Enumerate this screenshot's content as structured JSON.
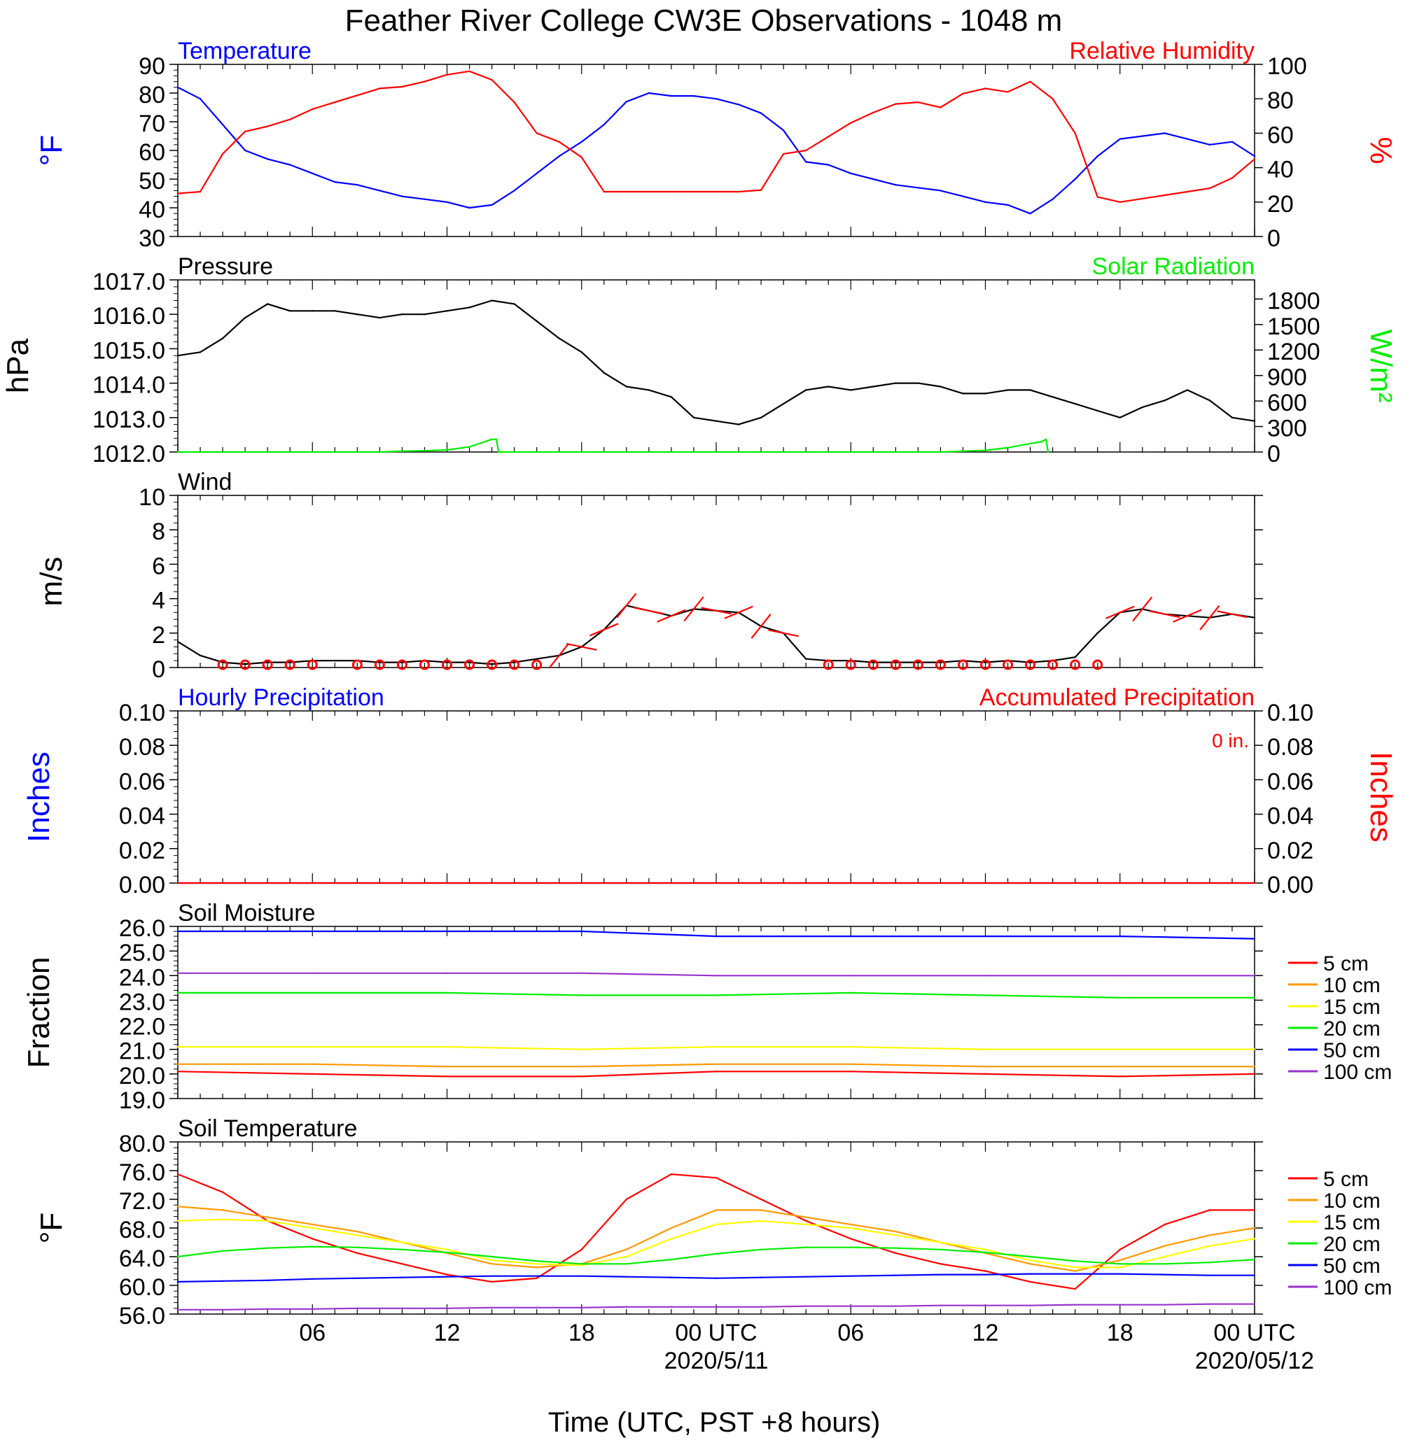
{
  "title": "Feather River College CW3E Observations - 1048 m",
  "colors": {
    "blue": "#0000ff",
    "red": "#ff0000",
    "green": "#00ee00",
    "black": "#000000",
    "orange": "#ff9900",
    "yellow": "#ffff00",
    "purple": "#9933cc"
  },
  "x_axis": {
    "label": "Time (UTC, PST +8 hours)",
    "tick_labels": [
      {
        "hour": 6,
        "text": "06"
      },
      {
        "hour": 12,
        "text": "12"
      },
      {
        "hour": 18,
        "text": "18"
      },
      {
        "hour": 24,
        "text": "00 UTC",
        "date": "2020/5/11"
      },
      {
        "hour": 30,
        "text": "06"
      },
      {
        "hour": 36,
        "text": "12"
      },
      {
        "hour": 42,
        "text": "18"
      },
      {
        "hour": 48,
        "text": "00 UTC",
        "date": "2020/05/12"
      }
    ]
  },
  "chart_data": [
    {
      "id": "temp_rh",
      "type": "line",
      "left_title": "Temperature",
      "right_title": "Relative Humidity",
      "ylabel": "°F",
      "ylabel2": "%",
      "ylim": [
        30,
        90
      ],
      "ylim2": [
        0,
        100
      ],
      "yticks": [
        "30",
        "40",
        "50",
        "60",
        "70",
        "80",
        "90"
      ],
      "yticks2": [
        "0",
        "20",
        "40",
        "60",
        "80",
        "100"
      ],
      "series": [
        {
          "axis": "left",
          "color": "blue",
          "x": [
            0,
            1,
            2,
            3,
            4,
            5,
            6,
            7,
            8,
            9,
            10,
            11,
            12,
            13,
            14,
            15,
            16,
            17,
            18,
            19,
            20,
            21,
            22,
            23,
            24,
            25,
            26,
            27,
            28,
            29,
            30,
            31,
            32,
            33,
            34,
            35,
            36,
            37,
            38,
            39,
            40,
            41,
            42,
            43,
            44,
            45,
            46,
            47,
            48
          ],
          "y": [
            82,
            78,
            69,
            60,
            57,
            55,
            52,
            49,
            48,
            46,
            44,
            43,
            42,
            40,
            41,
            46,
            52,
            58,
            63,
            69,
            77,
            80,
            79,
            79,
            78,
            76,
            73,
            67,
            56,
            55,
            52,
            50,
            48,
            47,
            46,
            44,
            42,
            41,
            38,
            43,
            50,
            58,
            64,
            65,
            66,
            64,
            62,
            63,
            58
          ]
        },
        {
          "axis": "right",
          "color": "red",
          "x": [
            0,
            1,
            2,
            3,
            4,
            5,
            6,
            7,
            8,
            9,
            10,
            11,
            12,
            13,
            14,
            15,
            16,
            17,
            18,
            19,
            20,
            21,
            22,
            23,
            24,
            25,
            26,
            27,
            28,
            29,
            30,
            31,
            32,
            33,
            34,
            35,
            36,
            37,
            38,
            39,
            40,
            41,
            42,
            43,
            44,
            45,
            46,
            47,
            48
          ],
          "y": [
            25,
            26,
            48,
            61,
            64,
            68,
            74,
            78,
            82,
            86,
            87,
            90,
            94,
            96,
            91,
            78,
            60,
            55,
            46,
            26,
            26,
            26,
            26,
            26,
            26,
            26,
            27,
            48,
            50,
            58,
            66,
            72,
            77,
            78,
            75,
            83,
            86,
            84,
            90,
            80,
            60,
            23,
            20,
            22,
            24,
            26,
            28,
            34,
            45
          ]
        }
      ]
    },
    {
      "id": "pressure_solar",
      "type": "line",
      "left_title": "Pressure",
      "right_title": "Solar Radiation",
      "ylabel": "hPa",
      "ylabel2": "W/m²",
      "ylim": [
        1012,
        1017
      ],
      "ylim2": [
        0,
        2025
      ],
      "yticks": [
        "1012.0",
        "1013.0",
        "1014.0",
        "1015.0",
        "1016.0",
        "1017.0"
      ],
      "yticks2": [
        "0",
        "300",
        "600",
        "900",
        "1200",
        "1500",
        "1800"
      ],
      "series": [
        {
          "axis": "left",
          "color": "black",
          "x": [
            0,
            1,
            2,
            3,
            4,
            5,
            6,
            7,
            8,
            9,
            10,
            11,
            12,
            13,
            14,
            15,
            16,
            17,
            18,
            19,
            20,
            21,
            22,
            23,
            24,
            25,
            26,
            27,
            28,
            29,
            30,
            31,
            32,
            33,
            34,
            35,
            36,
            37,
            38,
            39,
            40,
            41,
            42,
            43,
            44,
            45,
            46,
            47,
            48
          ],
          "y": [
            1014.8,
            1014.9,
            1015.3,
            1015.9,
            1016.3,
            1016.1,
            1016.1,
            1016.1,
            1016.0,
            1015.9,
            1016.0,
            1016.0,
            1016.1,
            1016.2,
            1016.4,
            1016.3,
            1015.8,
            1015.3,
            1014.9,
            1014.3,
            1013.9,
            1013.8,
            1013.6,
            1013.0,
            1012.9,
            1012.8,
            1013.0,
            1013.4,
            1013.8,
            1013.9,
            1013.8,
            1013.9,
            1014.0,
            1014.0,
            1013.9,
            1013.7,
            1013.7,
            1013.8,
            1013.8,
            1013.6,
            1013.4,
            1013.2,
            1013.0,
            1013.3,
            1013.5,
            1013.8,
            1013.5,
            1013.0,
            1012.9
          ]
        },
        {
          "axis": "right",
          "color": "green",
          "x": [
            0,
            9,
            10,
            11,
            12,
            13,
            14,
            14.2,
            14.3,
            34,
            35,
            36,
            37,
            38,
            38.5,
            38.7,
            38.8
          ],
          "y": [
            0,
            0,
            10,
            15,
            25,
            60,
            150,
            150,
            0,
            0,
            10,
            20,
            50,
            100,
            120,
            150,
            0
          ]
        }
      ]
    },
    {
      "id": "wind",
      "type": "line",
      "left_title": "Wind",
      "ylabel": "m/s",
      "ylim": [
        0,
        10
      ],
      "yticks": [
        "0",
        "2",
        "4",
        "6",
        "8",
        "10"
      ],
      "series": [
        {
          "axis": "left",
          "color": "black",
          "x": [
            0,
            1,
            2,
            3,
            4,
            5,
            6,
            7,
            8,
            9,
            10,
            11,
            12,
            13,
            14,
            15,
            16,
            17,
            18,
            19,
            20,
            21,
            22,
            23,
            24,
            25,
            26,
            27,
            28,
            29,
            30,
            31,
            32,
            33,
            34,
            35,
            36,
            37,
            38,
            39,
            40,
            41,
            42,
            43,
            44,
            45,
            46,
            47,
            48
          ],
          "y": [
            1.5,
            0.7,
            0.3,
            0.2,
            0.3,
            0.3,
            0.4,
            0.4,
            0.4,
            0.3,
            0.3,
            0.4,
            0.3,
            0.3,
            0.2,
            0.3,
            0.5,
            0.7,
            1.2,
            2.2,
            3.6,
            3.3,
            3.0,
            3.4,
            3.3,
            3.2,
            2.4,
            2.0,
            0.5,
            0.4,
            0.4,
            0.3,
            0.3,
            0.3,
            0.3,
            0.4,
            0.3,
            0.4,
            0.3,
            0.4,
            0.6,
            2.0,
            3.2,
            3.4,
            3.1,
            3.0,
            2.9,
            3.1,
            2.9
          ]
        }
      ]
    },
    {
      "id": "precip",
      "type": "line",
      "left_title": "Hourly Precipitation",
      "right_title": "Accumulated Precipitation",
      "annotation": "0 in.",
      "ylabel": "Inches",
      "ylabel2": "Inches",
      "ylim": [
        0,
        0.1
      ],
      "ylim2": [
        0,
        0.1
      ],
      "yticks": [
        "0.00",
        "0.02",
        "0.04",
        "0.06",
        "0.08",
        "0.10"
      ],
      "yticks2": [
        "0.00",
        "0.02",
        "0.04",
        "0.06",
        "0.08",
        "0.10"
      ],
      "series": [
        {
          "axis": "left",
          "color": "blue",
          "x": [
            0,
            48
          ],
          "y": [
            0,
            0
          ]
        },
        {
          "axis": "right",
          "color": "red",
          "x": [
            0,
            48
          ],
          "y": [
            0,
            0
          ]
        }
      ]
    },
    {
      "id": "soil_moisture",
      "type": "line",
      "left_title": "Soil Moisture",
      "ylabel": "Fraction",
      "ylim": [
        19,
        26
      ],
      "yticks": [
        "19.0",
        "20.0",
        "21.0",
        "22.0",
        "23.0",
        "24.0",
        "25.0",
        "26.0"
      ],
      "x": [
        0,
        6,
        12,
        18,
        24,
        30,
        36,
        42,
        48
      ],
      "series": [
        {
          "name": "5 cm",
          "color": "red",
          "y": [
            20.1,
            20.0,
            19.9,
            19.9,
            20.1,
            20.1,
            20.0,
            19.9,
            20.0
          ]
        },
        {
          "name": "10 cm",
          "color": "orange",
          "y": [
            20.4,
            20.4,
            20.3,
            20.3,
            20.4,
            20.4,
            20.3,
            20.3,
            20.3
          ]
        },
        {
          "name": "15 cm",
          "color": "yellow",
          "y": [
            21.1,
            21.1,
            21.1,
            21.0,
            21.1,
            21.1,
            21.0,
            21.0,
            21.0
          ]
        },
        {
          "name": "20 cm",
          "color": "green",
          "y": [
            23.3,
            23.3,
            23.3,
            23.2,
            23.2,
            23.3,
            23.2,
            23.1,
            23.1
          ]
        },
        {
          "name": "50 cm",
          "color": "blue",
          "y": [
            25.8,
            25.8,
            25.8,
            25.8,
            25.6,
            25.6,
            25.6,
            25.6,
            25.5
          ]
        },
        {
          "name": "100 cm",
          "color": "purple",
          "y": [
            24.1,
            24.1,
            24.1,
            24.1,
            24.0,
            24.0,
            24.0,
            24.0,
            24.0
          ]
        }
      ]
    },
    {
      "id": "soil_temperature",
      "type": "line",
      "left_title": "Soil Temperature",
      "ylabel": "°F",
      "ylim": [
        56,
        80
      ],
      "yticks": [
        "56.0",
        "60.0",
        "64.0",
        "68.0",
        "72.0",
        "76.0",
        "80.0"
      ],
      "x": [
        0,
        2,
        4,
        6,
        8,
        10,
        12,
        14,
        16,
        18,
        20,
        22,
        24,
        26,
        28,
        30,
        32,
        34,
        36,
        38,
        40,
        42,
        44,
        46,
        48
      ],
      "series": [
        {
          "name": "5 cm",
          "color": "red",
          "y": [
            75.5,
            73,
            69,
            66.5,
            64.5,
            63,
            61.5,
            60.5,
            61,
            65,
            72,
            75.5,
            75,
            72,
            69,
            66.5,
            64.5,
            63,
            62,
            60.5,
            59.5,
            65,
            68.5,
            70.5,
            70.5
          ]
        },
        {
          "name": "10 cm",
          "color": "orange",
          "y": [
            71.0,
            70.5,
            69.5,
            68.5,
            67.5,
            66,
            64.5,
            63,
            62.5,
            63,
            65,
            68,
            70.5,
            70.5,
            69.5,
            68.5,
            67.5,
            66,
            64.5,
            63,
            62,
            63.5,
            65.5,
            67,
            68
          ]
        },
        {
          "name": "15 cm",
          "color": "yellow",
          "y": [
            69.0,
            69.2,
            69,
            68,
            67,
            66,
            65,
            63.5,
            63,
            62.8,
            64,
            66.5,
            68.5,
            69,
            68.5,
            68,
            67,
            66,
            65,
            63.5,
            62.5,
            62.5,
            64,
            65.5,
            66.5
          ]
        },
        {
          "name": "20 cm",
          "color": "green",
          "y": [
            64.0,
            64.8,
            65.2,
            65.4,
            65.3,
            65.0,
            64.6,
            64.0,
            63.4,
            63.0,
            63.0,
            63.6,
            64.4,
            65.0,
            65.3,
            65.3,
            65.2,
            65.0,
            64.6,
            64.0,
            63.4,
            63.0,
            63.0,
            63.2,
            63.6
          ]
        },
        {
          "name": "50 cm",
          "color": "blue",
          "y": [
            60.5,
            60.6,
            60.7,
            60.9,
            61.0,
            61.1,
            61.2,
            61.3,
            61.3,
            61.3,
            61.2,
            61.1,
            61.0,
            61.1,
            61.2,
            61.3,
            61.4,
            61.5,
            61.5,
            61.6,
            61.6,
            61.6,
            61.5,
            61.4,
            61.4
          ]
        },
        {
          "name": "100 cm",
          "color": "purple",
          "y": [
            56.6,
            56.6,
            56.7,
            56.7,
            56.8,
            56.8,
            56.8,
            56.9,
            56.9,
            56.9,
            57.0,
            57.0,
            57.0,
            57.0,
            57.1,
            57.1,
            57.1,
            57.2,
            57.2,
            57.2,
            57.3,
            57.3,
            57.3,
            57.4,
            57.4
          ]
        }
      ]
    }
  ],
  "wind_direction_markers": {
    "calm_circle_hours": [
      2,
      3,
      4,
      5,
      6,
      8,
      9,
      10,
      11,
      12,
      13,
      14,
      15,
      16,
      29,
      30,
      31,
      32,
      33,
      34,
      35,
      36,
      37,
      38,
      39,
      40,
      41
    ],
    "barb_hours": [
      17,
      18,
      19,
      20,
      21,
      22,
      23,
      24,
      25,
      26,
      27,
      42,
      43,
      44,
      45,
      46,
      47
    ]
  }
}
